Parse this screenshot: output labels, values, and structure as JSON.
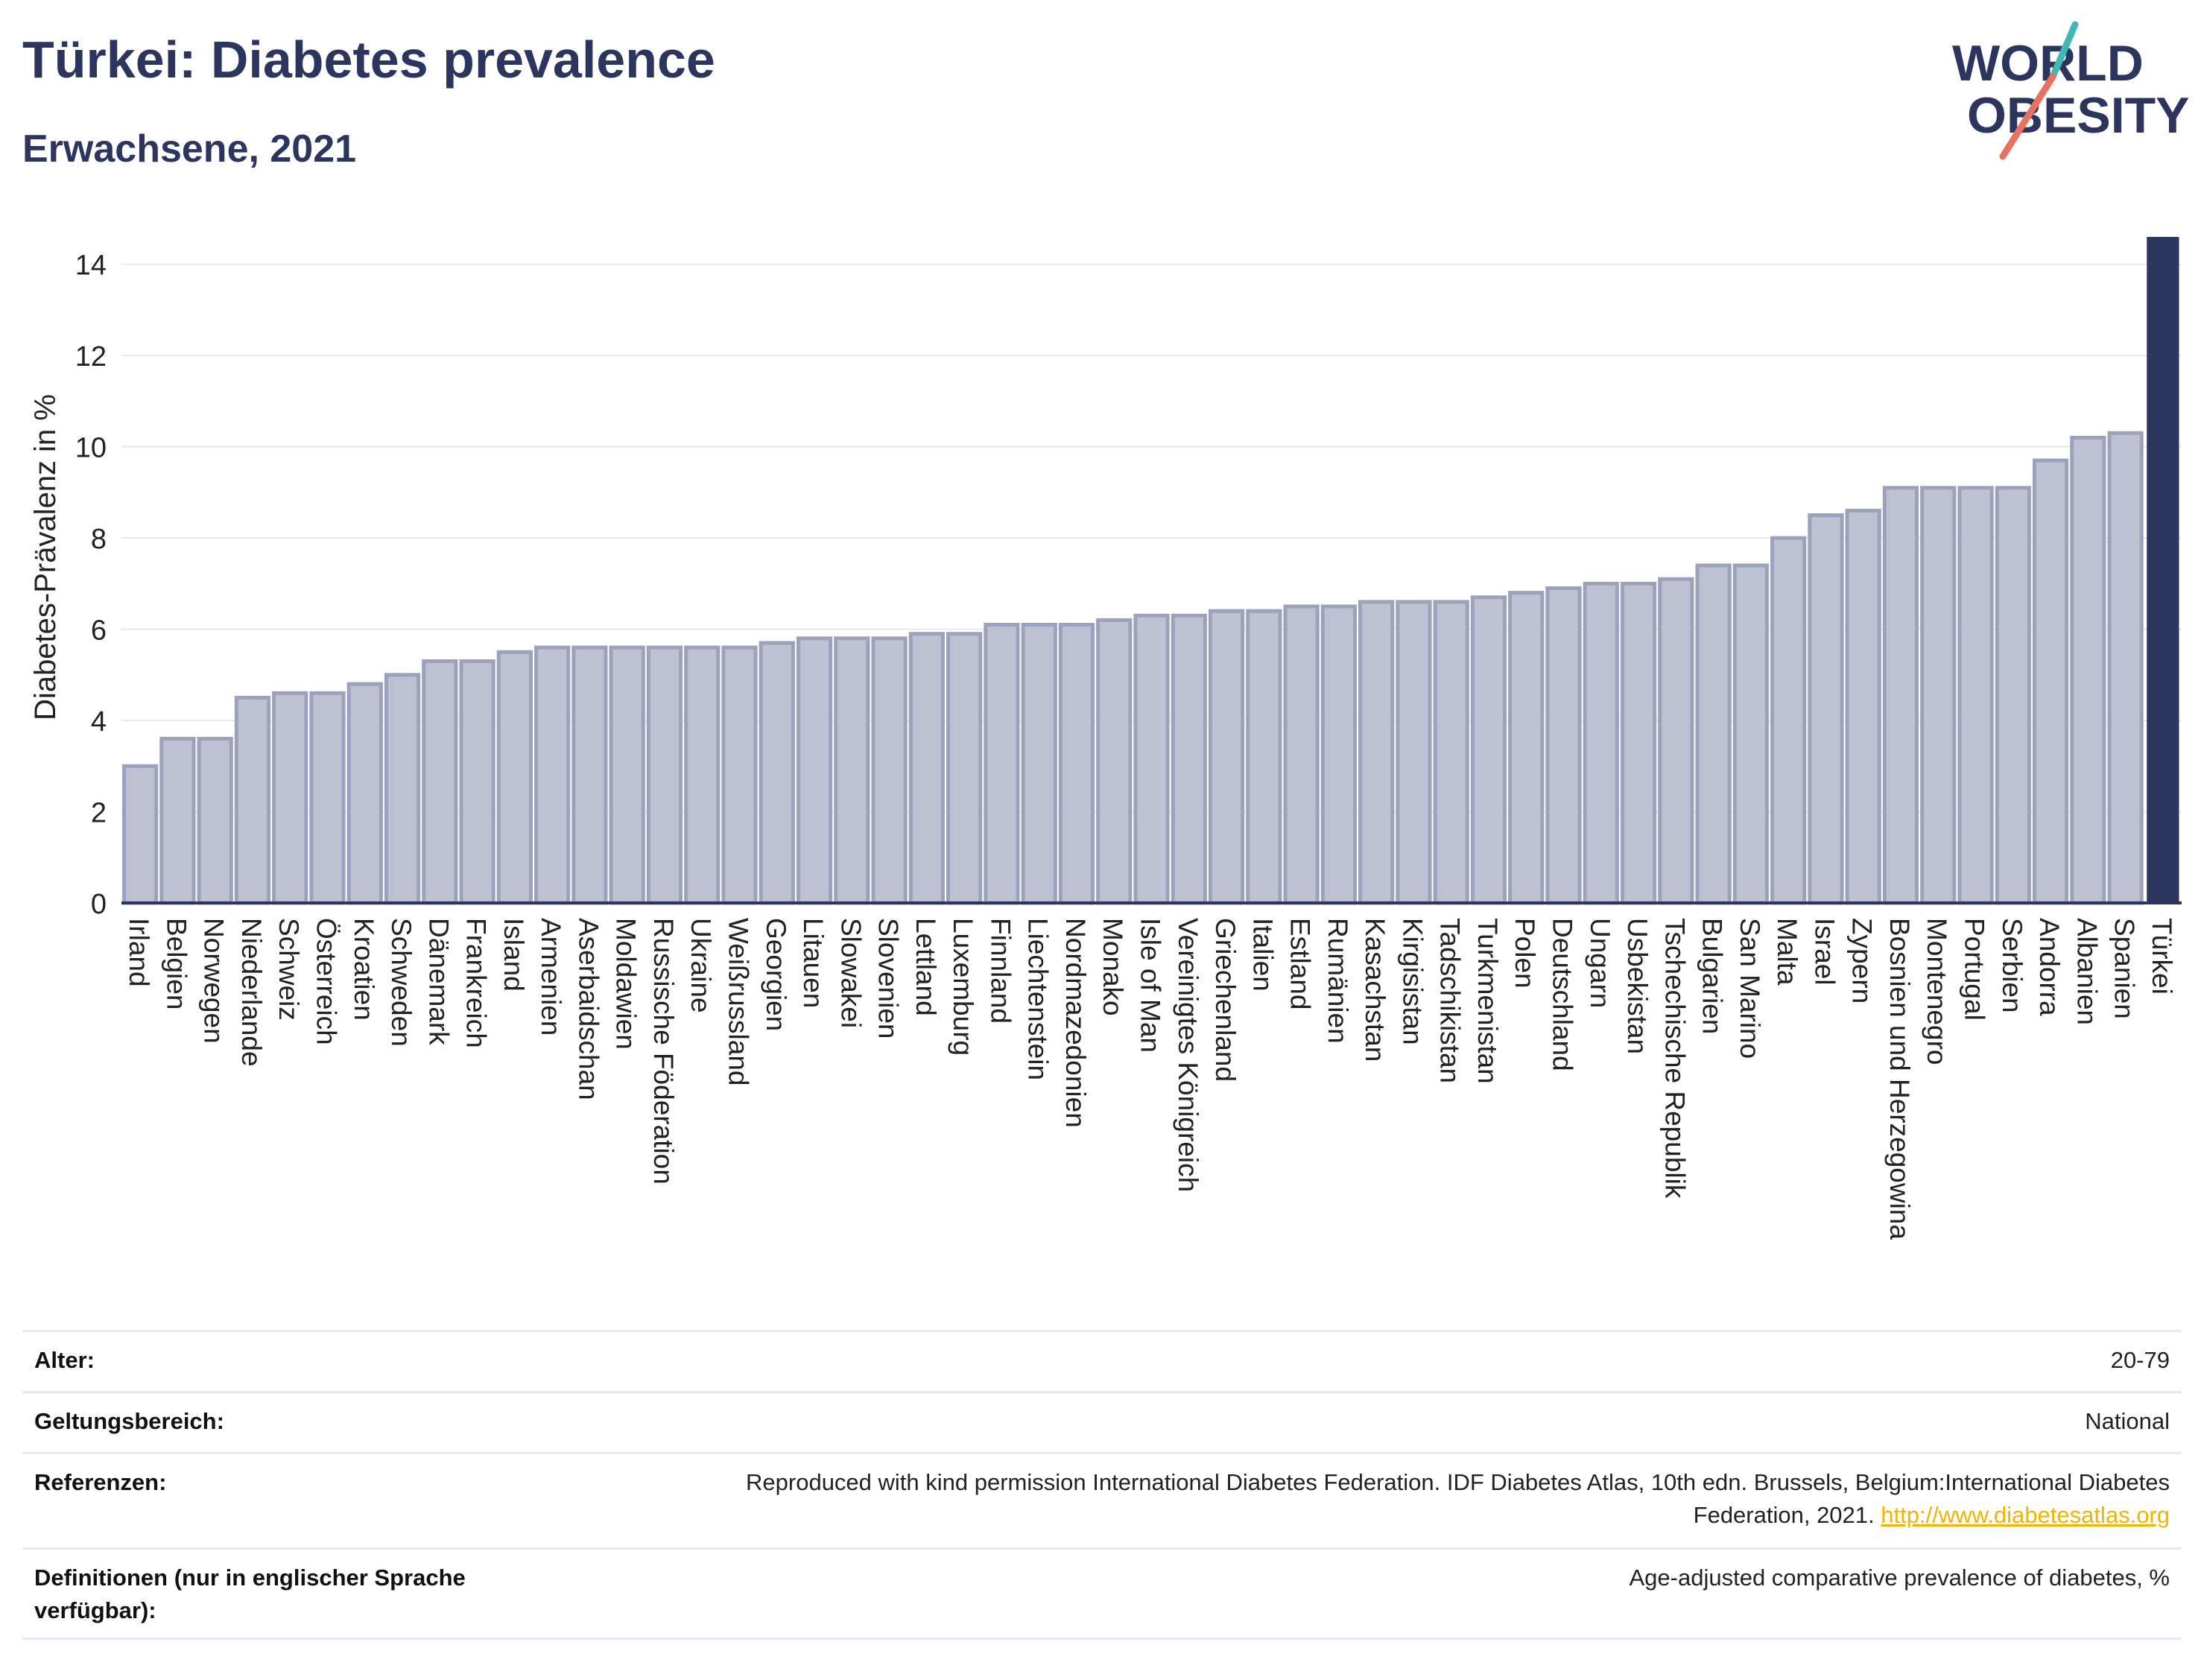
{
  "header": {
    "title": "Türkei: Diabetes prevalence",
    "subtitle": "Erwachsene, 2021"
  },
  "logo": {
    "line1": "WORLD",
    "line2": "OBESITY",
    "colors": {
      "text": "#2c355e",
      "slash_red": "#e8715f",
      "slash_teal": "#3fb8b4"
    }
  },
  "colors": {
    "bar": "#bdc1d2",
    "bar_stroke": "#9da2bc",
    "highlight": "#2c355e",
    "grid": "#e6e8ee",
    "axis": "#2c355e"
  },
  "chart_data": {
    "type": "bar",
    "title": "",
    "xlabel": "",
    "ylabel": "Diabetes-Prävalenz in %",
    "ylim": [
      0,
      14.6
    ],
    "yticks": [
      0,
      2,
      4,
      6,
      8,
      10,
      12,
      14
    ],
    "grid": true,
    "highlight": "Türkei",
    "categories": [
      "Irland",
      "Belgien",
      "Norwegen",
      "Niederlande",
      "Schweiz",
      "Österreich",
      "Kroatien",
      "Schweden",
      "Dänemark",
      "Frankreich",
      "Island",
      "Armenien",
      "Aserbaidschan",
      "Moldawien",
      "Russische Föderation",
      "Ukraine",
      "Weißrussland",
      "Georgien",
      "Litauen",
      "Slowakei",
      "Slovenien",
      "Lettland",
      "Luxemburg",
      "Finnland",
      "Liechtenstein",
      "Nordmazedonien",
      "Monako",
      "Isle of Man",
      "Vereinigtes Königreich",
      "Griechenland",
      "Italien",
      "Estland",
      "Rumänien",
      "Kasachstan",
      "Kirgisistan",
      "Tadschikistan",
      "Turkmenistan",
      "Polen",
      "Deutschland",
      "Ungarn",
      "Usbekistan",
      "Tschechische Republik",
      "Bulgarien",
      "San Marino",
      "Malta",
      "Israel",
      "Zypern",
      "Bosnien und Herzegowina",
      "Montenegro",
      "Portugal",
      "Serbien",
      "Andorra",
      "Albanien",
      "Spanien",
      "Türkei"
    ],
    "values": [
      3.0,
      3.6,
      3.6,
      4.5,
      4.6,
      4.6,
      4.8,
      5.0,
      5.3,
      5.3,
      5.5,
      5.6,
      5.6,
      5.6,
      5.6,
      5.6,
      5.6,
      5.7,
      5.8,
      5.8,
      5.8,
      5.9,
      5.9,
      6.1,
      6.1,
      6.1,
      6.2,
      6.3,
      6.3,
      6.4,
      6.4,
      6.5,
      6.5,
      6.6,
      6.6,
      6.6,
      6.7,
      6.8,
      6.9,
      7.0,
      7.0,
      7.1,
      7.4,
      7.4,
      8.0,
      8.5,
      8.6,
      9.1,
      9.1,
      9.1,
      9.1,
      9.7,
      10.2,
      10.3,
      14.6
    ]
  },
  "footer": {
    "rows": [
      {
        "label": "Alter:",
        "value": "20-79"
      },
      {
        "label": "Geltungsbereich:",
        "value": "National"
      },
      {
        "label": "Referenzen:",
        "value": "Reproduced with kind permission International Diabetes Federation.  IDF Diabetes Atlas, 10th edn. Brussels, Belgium:International Diabetes Federation, 2021.",
        "link": "http://www.diabetesatlas.org"
      },
      {
        "label": "Definitionen (nur in englischer Sprache verfügbar):",
        "value": "Age-adjusted comparative prevalence of diabetes, %"
      }
    ]
  }
}
